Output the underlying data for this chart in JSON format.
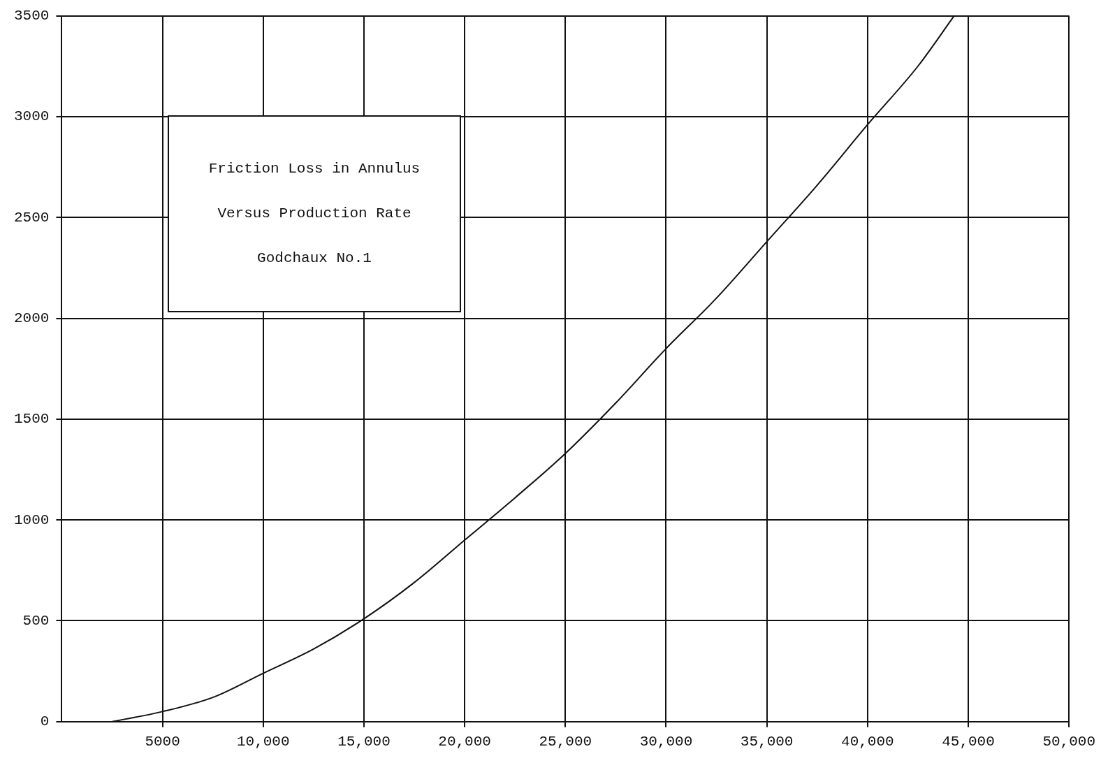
{
  "chart_data": {
    "type": "line",
    "title": "Friction Loss in Annulus Versus Production Rate",
    "subtitle": "Godchaux No.1",
    "x": [
      2500,
      5000,
      7500,
      10000,
      12500,
      15000,
      17500,
      20000,
      22500,
      25000,
      27500,
      30000,
      32500,
      35000,
      37500,
      40000,
      42500,
      44300
    ],
    "series": [
      {
        "color": "#111111",
        "values": [
          0,
          50,
          120,
          240,
          360,
          510,
          690,
          900,
          1110,
          1330,
          1580,
          1850,
          2100,
          2380,
          2660,
          2960,
          3250,
          3500
        ]
      }
    ],
    "xlim": [
      0,
      50000
    ],
    "ylim": [
      0,
      3500
    ],
    "xticks": [
      5000,
      {
        "value": 10000,
        "label": "10,000"
      },
      {
        "value": 15000,
        "label": "15,000"
      },
      {
        "value": 20000,
        "label": "20,000"
      },
      {
        "value": 25000,
        "label": "25,000"
      },
      {
        "value": 30000,
        "label": "30,000"
      },
      {
        "value": 35000,
        "label": "35,000"
      },
      {
        "value": 40000,
        "label": "40,000"
      },
      {
        "value": 45000,
        "label": "45,000"
      },
      {
        "value": 50000,
        "label": "50,000"
      }
    ],
    "yticks": [
      0,
      500,
      1000,
      1500,
      2000,
      2500,
      3000,
      3500
    ],
    "grid": true,
    "legend": false,
    "marker": "none",
    "line_style": "solid"
  }
}
